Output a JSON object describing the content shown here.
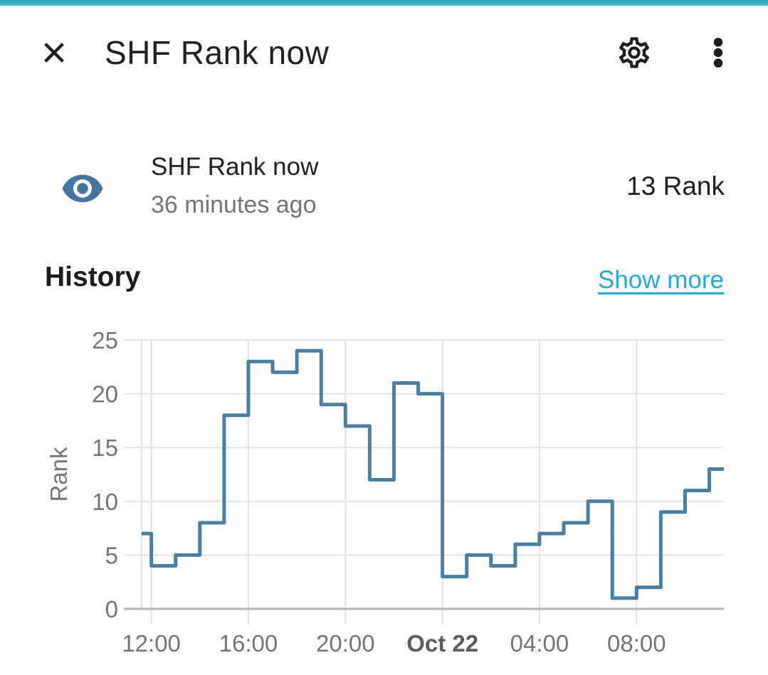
{
  "accent_bar": {
    "color": "#3db5c5"
  },
  "header": {
    "title": "SHF Rank now",
    "close_icon": "close-x-icon",
    "settings_icon": "cog-outline-icon",
    "menu_icon": "dots-vertical-icon",
    "icon_color": "#1d1d1d"
  },
  "entity": {
    "icon": "eye-icon",
    "icon_color": "#45749e",
    "name": "SHF Rank now",
    "last_changed": "36 minutes ago",
    "state": "13 Rank"
  },
  "history": {
    "title": "History",
    "show_more_label": "Show more",
    "link_color": "#27a8da"
  },
  "chart_data": {
    "type": "line",
    "subtype": "step-after",
    "title": "History",
    "xlabel": "",
    "ylabel": "Rank",
    "ylim": [
      0,
      25
    ],
    "yticks": [
      0,
      5,
      10,
      15,
      20,
      25
    ],
    "xlim_hours": [
      0,
      24
    ],
    "window": "Oct 21 ~11:36 to Oct 22 ~11:36",
    "xticks": [
      {
        "hour": 0.4,
        "label": "12:00",
        "bold": false
      },
      {
        "hour": 4.4,
        "label": "16:00",
        "bold": false
      },
      {
        "hour": 8.4,
        "label": "20:00",
        "bold": false
      },
      {
        "hour": 12.4,
        "label": "Oct 22",
        "bold": true
      },
      {
        "hour": 16.4,
        "label": "04:00",
        "bold": false
      },
      {
        "hour": 20.4,
        "label": "08:00",
        "bold": false
      }
    ],
    "grid": true,
    "legend": "none",
    "line_color": "#4b7ea3",
    "grid_color": "#e2e2e2",
    "axis_color": "#b6b6b6",
    "tick_label_color": "#757575",
    "bold_tick_label_color": "#5d5d5d",
    "steps": [
      {
        "t": 0.0,
        "v": 7
      },
      {
        "t": 0.4,
        "v": 4
      },
      {
        "t": 1.4,
        "v": 5
      },
      {
        "t": 2.4,
        "v": 8
      },
      {
        "t": 3.4,
        "v": 18
      },
      {
        "t": 4.4,
        "v": 23
      },
      {
        "t": 5.4,
        "v": 22
      },
      {
        "t": 6.4,
        "v": 24
      },
      {
        "t": 7.4,
        "v": 19
      },
      {
        "t": 8.4,
        "v": 17
      },
      {
        "t": 9.4,
        "v": 12
      },
      {
        "t": 10.4,
        "v": 21
      },
      {
        "t": 11.4,
        "v": 20
      },
      {
        "t": 12.4,
        "v": 3
      },
      {
        "t": 13.4,
        "v": 5
      },
      {
        "t": 14.4,
        "v": 4
      },
      {
        "t": 15.4,
        "v": 6
      },
      {
        "t": 16.4,
        "v": 7
      },
      {
        "t": 17.4,
        "v": 8
      },
      {
        "t": 18.4,
        "v": 10
      },
      {
        "t": 19.4,
        "v": 1
      },
      {
        "t": 20.4,
        "v": 2
      },
      {
        "t": 21.4,
        "v": 9
      },
      {
        "t": 22.4,
        "v": 11
      },
      {
        "t": 23.4,
        "v": 13
      }
    ],
    "end_hour": 24
  }
}
